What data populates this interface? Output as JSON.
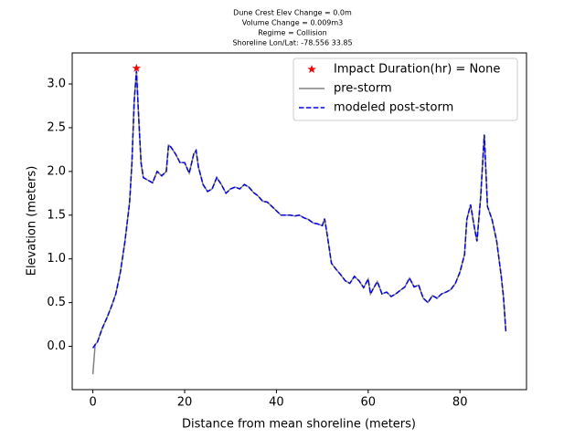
{
  "chart_data": {
    "type": "line",
    "title_lines": [
      "Dune Crest Elev Change = 0.0m",
      "Volume Change = 0.009m3",
      "Regime = Collision",
      "Shoreline Lon/Lat: -78.556 33.85"
    ],
    "xlabel": "Distance from mean shoreline (meters)",
    "ylabel": "Elevation (meters)",
    "xlim": [
      -4.5,
      94.5
    ],
    "ylim": [
      -0.495,
      3.355
    ],
    "xticks": [
      0,
      20,
      40,
      60,
      80
    ],
    "yticks": [
      {
        "value": 0,
        "label": "0.0"
      },
      0.5,
      {
        "value": 1,
        "label": "1.0"
      },
      1.5,
      {
        "value": 2,
        "label": "2.0"
      },
      2.5,
      {
        "value": 3,
        "label": "3.0"
      }
    ],
    "legend": "upper right",
    "series": [
      {
        "name": "Impact Duration(hr) = None",
        "color": "#ff0000",
        "marker": "star",
        "x": [
          9.5
        ],
        "values": [
          3.18
        ]
      },
      {
        "name": "pre-storm",
        "color": "#808080",
        "dash": false,
        "x": [
          0,
          0.5,
          1,
          2,
          3,
          4,
          5,
          6,
          7,
          8,
          8.5,
          9,
          9.5,
          10,
          10.5,
          11,
          12,
          13,
          14,
          15,
          16,
          16.5,
          17,
          18,
          19,
          20,
          21,
          22,
          22.5,
          23,
          24,
          25,
          26,
          27,
          28,
          29,
          30,
          31,
          32,
          33,
          34,
          35,
          36,
          37,
          38,
          39,
          40,
          41,
          42,
          43,
          44,
          45,
          46,
          47,
          48,
          49,
          50,
          50.5,
          51,
          52,
          53,
          54,
          55,
          56,
          57,
          58,
          59,
          60,
          60.5,
          61,
          62,
          63,
          64,
          65,
          66,
          67,
          68,
          69,
          70,
          71,
          72,
          73,
          74,
          75,
          76,
          77,
          78,
          79,
          80,
          81,
          81.5,
          82.3,
          83,
          83.7,
          84.5,
          85.3,
          86,
          87,
          88,
          89,
          89.5,
          90
        ],
        "values": [
          -0.32,
          0.02,
          0.05,
          0.2,
          0.32,
          0.45,
          0.6,
          0.85,
          1.2,
          1.65,
          2.1,
          2.8,
          3.15,
          2.6,
          2.1,
          1.93,
          1.9,
          1.87,
          2.0,
          1.95,
          2.0,
          2.3,
          2.28,
          2.2,
          2.1,
          2.1,
          1.98,
          2.2,
          2.24,
          2.05,
          1.85,
          1.77,
          1.8,
          1.93,
          1.85,
          1.75,
          1.8,
          1.82,
          1.8,
          1.85,
          1.82,
          1.76,
          1.72,
          1.66,
          1.65,
          1.6,
          1.55,
          1.5,
          1.5,
          1.5,
          1.49,
          1.5,
          1.47,
          1.45,
          1.41,
          1.4,
          1.38,
          1.46,
          1.3,
          0.95,
          0.88,
          0.82,
          0.75,
          0.72,
          0.8,
          0.75,
          0.67,
          0.77,
          0.6,
          0.65,
          0.74,
          0.6,
          0.62,
          0.57,
          0.6,
          0.64,
          0.68,
          0.78,
          0.68,
          0.7,
          0.55,
          0.5,
          0.58,
          0.55,
          0.6,
          0.62,
          0.65,
          0.72,
          0.85,
          1.05,
          1.45,
          1.62,
          1.4,
          1.2,
          1.7,
          2.42,
          1.6,
          1.45,
          1.2,
          0.8,
          0.55,
          0.17
        ]
      },
      {
        "name": "modeled post-storm",
        "color": "#0000ff",
        "dash": true,
        "x": [
          0,
          0.5,
          1,
          2,
          3,
          4,
          5,
          6,
          7,
          8,
          8.5,
          9,
          9.5,
          10,
          10.5,
          11,
          12,
          13,
          14,
          15,
          16,
          16.5,
          17,
          18,
          19,
          20,
          21,
          22,
          22.5,
          23,
          24,
          25,
          26,
          27,
          28,
          29,
          30,
          31,
          32,
          33,
          34,
          35,
          36,
          37,
          38,
          39,
          40,
          41,
          42,
          43,
          44,
          45,
          46,
          47,
          48,
          49,
          50,
          50.5,
          51,
          52,
          53,
          54,
          55,
          56,
          57,
          58,
          59,
          60,
          60.5,
          61,
          62,
          63,
          64,
          65,
          66,
          67,
          68,
          69,
          70,
          71,
          72,
          73,
          74,
          75,
          76,
          77,
          78,
          79,
          80,
          81,
          81.5,
          82.3,
          83,
          83.7,
          84.5,
          85.3,
          86,
          87,
          88,
          89,
          89.5,
          90
        ],
        "values": [
          -0.02,
          0.02,
          0.05,
          0.2,
          0.32,
          0.45,
          0.6,
          0.85,
          1.2,
          1.65,
          2.1,
          2.8,
          3.15,
          2.6,
          2.1,
          1.93,
          1.9,
          1.87,
          2.0,
          1.95,
          2.0,
          2.3,
          2.28,
          2.2,
          2.1,
          2.1,
          1.98,
          2.2,
          2.24,
          2.05,
          1.85,
          1.77,
          1.8,
          1.93,
          1.85,
          1.75,
          1.8,
          1.82,
          1.8,
          1.85,
          1.82,
          1.76,
          1.72,
          1.66,
          1.65,
          1.6,
          1.55,
          1.5,
          1.5,
          1.5,
          1.49,
          1.5,
          1.47,
          1.45,
          1.41,
          1.4,
          1.38,
          1.46,
          1.3,
          0.95,
          0.88,
          0.82,
          0.75,
          0.72,
          0.8,
          0.75,
          0.67,
          0.77,
          0.6,
          0.65,
          0.74,
          0.6,
          0.62,
          0.57,
          0.6,
          0.64,
          0.68,
          0.78,
          0.68,
          0.7,
          0.55,
          0.5,
          0.58,
          0.55,
          0.6,
          0.62,
          0.65,
          0.72,
          0.85,
          1.05,
          1.45,
          1.62,
          1.4,
          1.2,
          1.7,
          2.42,
          1.6,
          1.45,
          1.2,
          0.8,
          0.55,
          0.17
        ]
      }
    ]
  }
}
